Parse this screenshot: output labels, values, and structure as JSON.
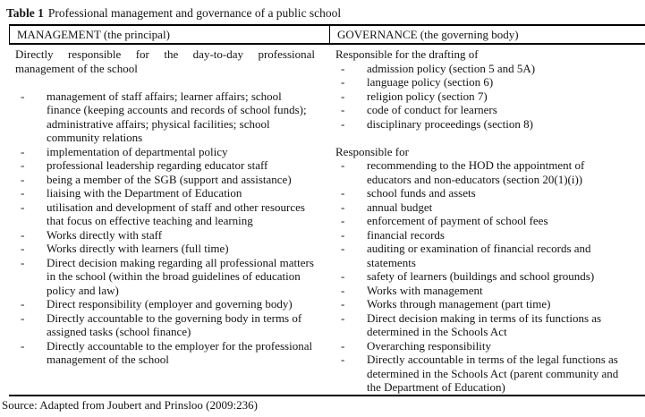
{
  "title": {
    "label": "Table 1",
    "text": "Professional management and governance of a public school"
  },
  "table": {
    "columns": [
      {
        "id": "management",
        "header": "MANAGEMENT (the principal)",
        "blocks": [
          {
            "type": "paragraph",
            "justify": true,
            "text": "Directly responsible for the day-to-day professional management of the school"
          },
          {
            "type": "spacer"
          },
          {
            "type": "bullets",
            "items": [
              "management of staff affairs; learner affairs; school finance (keeping accounts and records of school funds); administrative affairs; physical facilities; school community relations",
              "implementation of departmental policy",
              "professional leadership regarding educator staff",
              "being a member of the SGB (support and assistance)",
              "liaising with the Department of Education",
              "utilisation and development of staff and other resources that focus on effective teaching and learning",
              "Works directly with staff",
              "Works directly with learners (full time)",
              "Direct decision making regarding all professional matters in the school (within the broad guidelines of education policy and law)",
              "Direct responsibility (employer and governing body)",
              "Directly accountable to the governing body in terms of assigned tasks (school finance)",
              "Directly accountable to the employer for the professional management of the school"
            ]
          }
        ]
      },
      {
        "id": "governance",
        "header": "GOVERNANCE (the governing body)",
        "blocks": [
          {
            "type": "paragraph",
            "text": "Responsible for the drafting of"
          },
          {
            "type": "bullets",
            "items": [
              "admission policy (section 5 and 5A)",
              "language policy (section 6)",
              "religion policy (section 7)",
              "code of conduct for learners",
              "disciplinary proceedings (section 8)"
            ]
          },
          {
            "type": "spacer"
          },
          {
            "type": "paragraph",
            "text": "Responsible for"
          },
          {
            "type": "bullets",
            "items": [
              "recommending to the HOD the appointment of educators and non-educators (section 20(1)(i))",
              "school funds and assets",
              "annual budget",
              "enforcement of payment of school fees",
              "financial records",
              "auditing or examination of financial records and statements",
              "safety of learners (buildings and school grounds)",
              "Works with management",
              "Works through management (part time)",
              "Direct decision making in terms of its functions as determined in the Schools Act",
              "Overarching responsibility",
              "Directly accountable in terms of the legal functions as determined in the Schools Act (parent community and the Department of Education)"
            ]
          }
        ]
      }
    ]
  },
  "source": "Source: Adapted from Joubert and Prinsloo (2009:236)"
}
